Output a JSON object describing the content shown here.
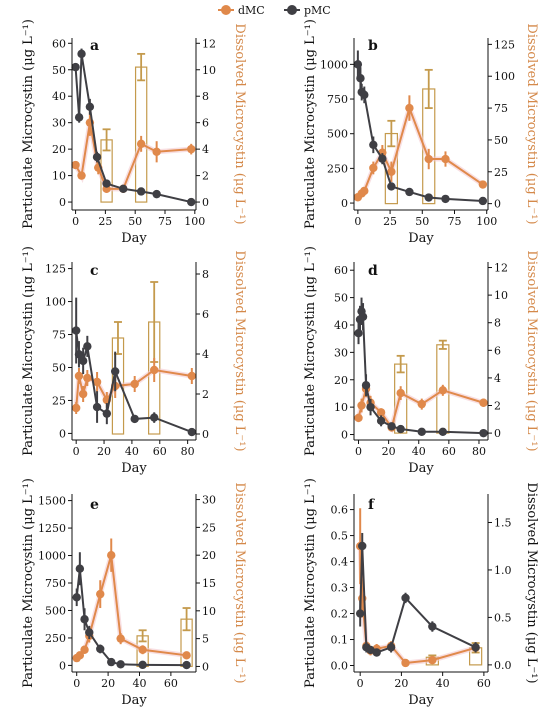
{
  "legend": [
    {
      "label": "dMC",
      "color": "#e0894b"
    },
    {
      "label": "pMC",
      "color": "#3f3f44"
    }
  ],
  "colors": {
    "dmc": "#e0894b",
    "pmc": "#3f3f44",
    "bar": "#c49a4c",
    "axis_right": "#d4894a"
  },
  "chart_data": [
    {
      "type": "line",
      "label": "a",
      "xlabel": "Day",
      "ylabel_left": "Particulate Microcystin (μg L⁻¹)",
      "ylabel_right": "Dissolved Microcystin (μg L⁻¹)",
      "xlim": [
        -3,
        101
      ],
      "xticks": [
        0,
        25,
        50,
        75,
        100
      ],
      "ylim_left": [
        -3,
        62
      ],
      "yticks_left": [
        0,
        10,
        20,
        30,
        40,
        50,
        60
      ],
      "ylim_right": [
        -0.6,
        12.4
      ],
      "yticks_right": [
        0,
        2,
        4,
        6,
        8,
        10,
        12
      ],
      "pmc": [
        [
          0,
          51,
          1
        ],
        [
          3,
          32,
          2
        ],
        [
          5,
          56,
          2
        ],
        [
          12,
          36,
          3
        ],
        [
          18,
          17,
          2
        ],
        [
          26,
          7,
          1
        ],
        [
          40,
          5,
          1
        ],
        [
          55,
          4,
          1
        ],
        [
          68,
          3,
          1
        ],
        [
          97,
          0,
          0.3
        ]
      ],
      "dmc": [
        [
          0,
          2.8,
          0.3
        ],
        [
          5,
          2.0,
          0.3
        ],
        [
          12,
          6.0,
          1.0
        ],
        [
          19,
          2.6,
          0.5
        ],
        [
          26,
          1.0,
          0.3
        ],
        [
          40,
          1.0,
          0.3
        ],
        [
          55,
          4.4,
          0.6
        ],
        [
          68,
          3.8,
          0.8
        ],
        [
          97,
          4.0,
          0.4
        ]
      ],
      "bars": [
        [
          26,
          4.7,
          0.8
        ],
        [
          55,
          10.2,
          1.0
        ]
      ]
    },
    {
      "type": "line",
      "label": "b",
      "xlabel": "Day",
      "ylim_left": [
        -50,
        1190
      ],
      "yticks_left": [
        0,
        250,
        500,
        750,
        1000
      ],
      "ylim_right": [
        -5,
        130
      ],
      "yticks_right": [
        0,
        25,
        50,
        75,
        100,
        125
      ],
      "xlim": [
        -3,
        101
      ],
      "xticks": [
        0,
        25,
        50,
        75,
        100
      ],
      "pmc": [
        [
          0,
          1000,
          100
        ],
        [
          2,
          900,
          80
        ],
        [
          3,
          800,
          60
        ],
        [
          5,
          780,
          60
        ],
        [
          12,
          420,
          60
        ],
        [
          19,
          320,
          40
        ],
        [
          26,
          120,
          20
        ],
        [
          40,
          80,
          20
        ],
        [
          55,
          40,
          10
        ],
        [
          68,
          30,
          10
        ],
        [
          97,
          15,
          5
        ]
      ],
      "dmc": [
        [
          0,
          5,
          2
        ],
        [
          3,
          8,
          2
        ],
        [
          5,
          10,
          3
        ],
        [
          12,
          28,
          5
        ],
        [
          19,
          40,
          6
        ],
        [
          26,
          25,
          8
        ],
        [
          40,
          75,
          10
        ],
        [
          55,
          35,
          8
        ],
        [
          68,
          35,
          6
        ],
        [
          97,
          15,
          3
        ]
      ],
      "bars": [
        [
          26,
          55,
          10
        ],
        [
          55,
          90,
          15
        ]
      ]
    },
    {
      "type": "line",
      "label": "c",
      "xlabel": "Day",
      "ylim_left": [
        -5,
        130
      ],
      "yticks_left": [
        0,
        25,
        50,
        75,
        100,
        125
      ],
      "ylim_right": [
        -0.3,
        8.6
      ],
      "yticks_right": [
        0,
        2,
        4,
        6,
        8
      ],
      "xlim": [
        -3,
        86
      ],
      "xticks": [
        0,
        20,
        40,
        60,
        80
      ],
      "pmc": [
        [
          0,
          78,
          25
        ],
        [
          2,
          60,
          10
        ],
        [
          5,
          55,
          10
        ],
        [
          8,
          66,
          8
        ],
        [
          15,
          20,
          12
        ],
        [
          22,
          15,
          8
        ],
        [
          28,
          47,
          15
        ],
        [
          42,
          11,
          3
        ],
        [
          56,
          12,
          4
        ],
        [
          83,
          1,
          1
        ]
      ],
      "dmc": [
        [
          0,
          1.3,
          0.3
        ],
        [
          2,
          2.9,
          0.4
        ],
        [
          5,
          2.0,
          0.4
        ],
        [
          8,
          2.8,
          0.4
        ],
        [
          15,
          2.6,
          0.5
        ],
        [
          22,
          1.7,
          0.4
        ],
        [
          28,
          2.4,
          0.6
        ],
        [
          42,
          2.5,
          0.4
        ],
        [
          56,
          3.2,
          0.6
        ],
        [
          83,
          2.9,
          0.4
        ]
      ],
      "bars": [
        [
          30,
          4.8,
          0.8
        ],
        [
          56,
          5.6,
          2.0
        ]
      ]
    },
    {
      "type": "line",
      "label": "d",
      "xlabel": "Day",
      "ylim_left": [
        -2,
        63
      ],
      "yticks_left": [
        0,
        10,
        20,
        30,
        40,
        50,
        60
      ],
      "ylim_right": [
        -0.5,
        12.4
      ],
      "yticks_right": [
        0,
        2,
        4,
        6,
        8,
        10,
        12
      ],
      "xlim": [
        -3,
        86
      ],
      "xticks": [
        0,
        20,
        40,
        60,
        80
      ],
      "pmc": [
        [
          0,
          37,
          4
        ],
        [
          1,
          42,
          5
        ],
        [
          2,
          45,
          5
        ],
        [
          3,
          43,
          5
        ],
        [
          5,
          18,
          4
        ],
        [
          8,
          10,
          3
        ],
        [
          15,
          5,
          2
        ],
        [
          22,
          3,
          1
        ],
        [
          28,
          2,
          1
        ],
        [
          42,
          1,
          0.5
        ],
        [
          56,
          1,
          0.5
        ],
        [
          83,
          0.5,
          0.3
        ]
      ],
      "dmc": [
        [
          0,
          1.1,
          0.3
        ],
        [
          2,
          2.0,
          0.5
        ],
        [
          5,
          3.2,
          0.6
        ],
        [
          8,
          2.2,
          0.5
        ],
        [
          15,
          1.5,
          0.3
        ],
        [
          22,
          0.4,
          0.2
        ],
        [
          28,
          2.9,
          0.5
        ],
        [
          42,
          2.1,
          0.4
        ],
        [
          56,
          3.1,
          0.4
        ],
        [
          83,
          2.2,
          0.3
        ]
      ],
      "bars": [
        [
          28,
          5.0,
          0.6
        ],
        [
          56,
          6.4,
          0.3
        ]
      ]
    },
    {
      "type": "line",
      "label": "e",
      "xlabel": "Day",
      "ylim_left": [
        -60,
        1560
      ],
      "yticks_left": [
        0,
        250,
        500,
        750,
        1000,
        1250,
        1500
      ],
      "ylim_right": [
        -1,
        31
      ],
      "yticks_right": [
        0,
        5,
        10,
        15,
        20,
        25,
        30
      ],
      "xlim": [
        -3,
        76
      ],
      "xticks": [
        0,
        20,
        40,
        60
      ],
      "pmc": [
        [
          0,
          620,
          80
        ],
        [
          2,
          880,
          150
        ],
        [
          5,
          420,
          100
        ],
        [
          8,
          300,
          60
        ],
        [
          15,
          150,
          40
        ],
        [
          22,
          30,
          10
        ],
        [
          28,
          10,
          5
        ],
        [
          42,
          5,
          3
        ],
        [
          70,
          3,
          2
        ]
      ],
      "dmc": [
        [
          0,
          1.5,
          0.3
        ],
        [
          2,
          2.0,
          0.5
        ],
        [
          5,
          3.0,
          0.7
        ],
        [
          8,
          5.5,
          1.2
        ],
        [
          15,
          13.0,
          2.5
        ],
        [
          22,
          20.0,
          3.0
        ],
        [
          28,
          5.0,
          1.0
        ],
        [
          42,
          3.0,
          0.8
        ],
        [
          70,
          2.0,
          0.5
        ]
      ],
      "bars": [
        [
          42,
          5.5,
          1.0
        ],
        [
          70,
          8.5,
          2.0
        ]
      ]
    },
    {
      "type": "line",
      "label": "f",
      "xlabel": "Day",
      "ylabel_right": "Dissolved Microcystin (μg L⁻¹)",
      "ylim_left": [
        -0.025,
        0.66
      ],
      "yticks_left": [
        0.0,
        0.1,
        0.2,
        0.3,
        0.4,
        0.5,
        0.6
      ],
      "ylim_right": [
        -0.075,
        1.8
      ],
      "yticks_right": [
        0.0,
        0.5,
        1.0,
        1.5
      ],
      "xlim": [
        -3,
        62
      ],
      "xticks": [
        0,
        20,
        40,
        60
      ],
      "pmc": [
        [
          0,
          0.2,
          0.05
        ],
        [
          1,
          0.46,
          0.05
        ],
        [
          3,
          0.07,
          0.02
        ],
        [
          5,
          0.06,
          0.01
        ],
        [
          8,
          0.05,
          0.01
        ],
        [
          15,
          0.07,
          0.02
        ],
        [
          22,
          0.26,
          0.02
        ],
        [
          35,
          0.15,
          0.02
        ],
        [
          56,
          0.07,
          0.02
        ]
      ],
      "dmc": [
        [
          0,
          1.25,
          0.4
        ],
        [
          1,
          0.7,
          0.2
        ],
        [
          3,
          0.2,
          0.05
        ],
        [
          5,
          0.15,
          0.05
        ],
        [
          8,
          0.17,
          0.05
        ],
        [
          15,
          0.2,
          0.05
        ],
        [
          22,
          0.02,
          0.01
        ],
        [
          35,
          0.05,
          0.01
        ],
        [
          56,
          0.18,
          0.03
        ]
      ],
      "bars": [
        [
          35,
          0.08,
          0.02
        ],
        [
          56,
          0.18,
          0.05
        ]
      ]
    }
  ]
}
